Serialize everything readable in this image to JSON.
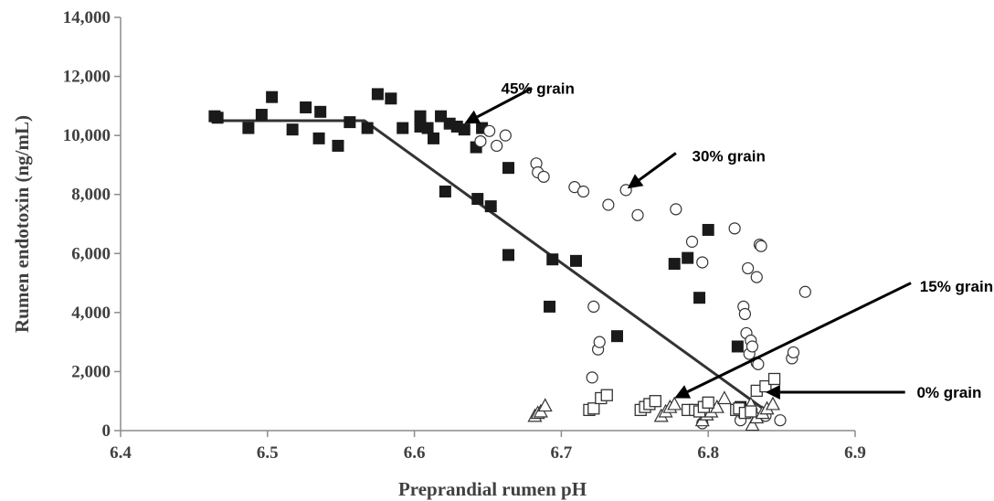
{
  "chart_data": {
    "type": "scatter",
    "title": "",
    "xlabel": "Preprandial rumen pH",
    "ylabel": "Rumen endotoxin (ng/mL)",
    "xlim": [
      6.4,
      6.9
    ],
    "ylim": [
      0,
      14000
    ],
    "x_ticks": [
      6.4,
      6.5,
      6.6,
      6.7,
      6.8,
      6.9
    ],
    "x_tick_labels": [
      "6.4",
      "6.5",
      "6.6",
      "6.7",
      "6.8",
      "6.9"
    ],
    "y_ticks": [
      0,
      2000,
      4000,
      6000,
      8000,
      10000,
      12000,
      14000
    ],
    "y_tick_labels": [
      "0",
      "2,000",
      "4,000",
      "6,000",
      "8,000",
      "10,000",
      "12,000",
      "14,000"
    ],
    "grid": false,
    "legend": "none",
    "series": [
      {
        "name": "45% grain",
        "marker": "filled-square",
        "color": "#1a1a1a",
        "points": [
          [
            6.464,
            10650
          ],
          [
            6.466,
            10600
          ],
          [
            6.487,
            10250
          ],
          [
            6.496,
            10700
          ],
          [
            6.503,
            11300
          ],
          [
            6.517,
            10200
          ],
          [
            6.526,
            10950
          ],
          [
            6.535,
            9900
          ],
          [
            6.536,
            10800
          ],
          [
            6.548,
            9650
          ],
          [
            6.556,
            10450
          ],
          [
            6.568,
            10250
          ],
          [
            6.575,
            11400
          ],
          [
            6.584,
            11250
          ],
          [
            6.592,
            10250
          ],
          [
            6.604,
            10650
          ],
          [
            6.604,
            10300
          ],
          [
            6.609,
            10250
          ],
          [
            6.613,
            9900
          ],
          [
            6.618,
            10650
          ],
          [
            6.621,
            8100
          ],
          [
            6.624,
            10400
          ],
          [
            6.629,
            10300
          ],
          [
            6.634,
            10200
          ],
          [
            6.642,
            9600
          ],
          [
            6.643,
            7850
          ],
          [
            6.646,
            10250
          ],
          [
            6.652,
            7600
          ],
          [
            6.664,
            8900
          ],
          [
            6.664,
            5950
          ],
          [
            6.692,
            4200
          ],
          [
            6.694,
            5800
          ],
          [
            6.71,
            5750
          ],
          [
            6.738,
            3200
          ],
          [
            6.777,
            5650
          ],
          [
            6.786,
            5850
          ],
          [
            6.794,
            4500
          ],
          [
            6.8,
            6800
          ],
          [
            6.82,
            2850
          ],
          [
            6.822,
            800
          ],
          [
            6.826,
            700
          ]
        ]
      },
      {
        "name": "30% grain",
        "marker": "open-circle",
        "color": "#333333",
        "points": [
          [
            6.645,
            9800
          ],
          [
            6.651,
            10150
          ],
          [
            6.656,
            9650
          ],
          [
            6.662,
            10000
          ],
          [
            6.683,
            9050
          ],
          [
            6.684,
            8750
          ],
          [
            6.688,
            8600
          ],
          [
            6.709,
            8250
          ],
          [
            6.715,
            8100
          ],
          [
            6.732,
            7650
          ],
          [
            6.744,
            8150
          ],
          [
            6.752,
            7300
          ],
          [
            6.778,
            7500
          ],
          [
            6.789,
            6400
          ],
          [
            6.796,
            5700
          ],
          [
            6.818,
            6850
          ],
          [
            6.822,
            350
          ],
          [
            6.824,
            4200
          ],
          [
            6.825,
            3950
          ],
          [
            6.826,
            3300
          ],
          [
            6.827,
            5500
          ],
          [
            6.828,
            2600
          ],
          [
            6.829,
            3050
          ],
          [
            6.83,
            2850
          ],
          [
            6.833,
            5200
          ],
          [
            6.833,
            2300
          ],
          [
            6.834,
            2250
          ],
          [
            6.835,
            6300
          ],
          [
            6.836,
            6250
          ],
          [
            6.839,
            500
          ],
          [
            6.849,
            350
          ],
          [
            6.857,
            2450
          ],
          [
            6.858,
            2650
          ],
          [
            6.866,
            4700
          ],
          [
            6.721,
            1800
          ],
          [
            6.722,
            4200
          ],
          [
            6.725,
            2750
          ],
          [
            6.726,
            3000
          ],
          [
            6.796,
            250
          ]
        ]
      },
      {
        "name": "15% grain",
        "marker": "open-triangle",
        "color": "#333333",
        "points": [
          [
            6.682,
            500
          ],
          [
            6.684,
            600
          ],
          [
            6.686,
            650
          ],
          [
            6.689,
            850
          ],
          [
            6.768,
            500
          ],
          [
            6.771,
            650
          ],
          [
            6.774,
            800
          ],
          [
            6.777,
            900
          ],
          [
            6.796,
            350
          ],
          [
            6.799,
            550
          ],
          [
            6.802,
            650
          ],
          [
            6.806,
            800
          ],
          [
            6.811,
            1100
          ],
          [
            6.825,
            650
          ],
          [
            6.829,
            900
          ],
          [
            6.83,
            200
          ],
          [
            6.833,
            450
          ],
          [
            6.837,
            600
          ],
          [
            6.84,
            750
          ],
          [
            6.844,
            900
          ]
        ]
      },
      {
        "name": "0% grain",
        "marker": "open-square",
        "color": "#333333",
        "points": [
          [
            6.719,
            700
          ],
          [
            6.722,
            750
          ],
          [
            6.727,
            1100
          ],
          [
            6.731,
            1200
          ],
          [
            6.754,
            700
          ],
          [
            6.757,
            800
          ],
          [
            6.76,
            900
          ],
          [
            6.764,
            1000
          ],
          [
            6.786,
            700
          ],
          [
            6.791,
            700
          ],
          [
            6.794,
            650
          ],
          [
            6.797,
            800
          ],
          [
            6.8,
            950
          ],
          [
            6.819,
            700
          ],
          [
            6.821,
            750
          ],
          [
            6.825,
            600
          ],
          [
            6.829,
            650
          ],
          [
            6.833,
            1350
          ],
          [
            6.839,
            1500
          ],
          [
            6.845,
            1750
          ]
        ]
      }
    ],
    "trend_line": {
      "name": "broken-line fit",
      "color": "#333333",
      "points": [
        [
          6.46,
          10500
        ],
        [
          6.566,
          10500
        ],
        [
          6.84,
          650
        ]
      ]
    },
    "annotations": [
      {
        "text": "45% grain",
        "text_at": [
          6.684,
          11600
        ],
        "arrow_from": [
          6.68,
          11600
        ],
        "arrow_to": [
          6.634,
          10400
        ]
      },
      {
        "text": "30% grain",
        "text_at": [
          6.814,
          9300
        ],
        "arrow_from": [
          6.778,
          9400
        ],
        "arrow_to": [
          6.745,
          8200
        ]
      },
      {
        "text": "15% grain",
        "text_at": [
          6.969,
          4900
        ],
        "arrow_from": [
          6.938,
          5000
        ],
        "arrow_to": [
          6.777,
          1100
        ]
      },
      {
        "text": "0% grain",
        "text_at": [
          6.964,
          1300
        ],
        "arrow_from": [
          6.934,
          1300
        ],
        "arrow_to": [
          6.839,
          1300
        ]
      }
    ]
  }
}
